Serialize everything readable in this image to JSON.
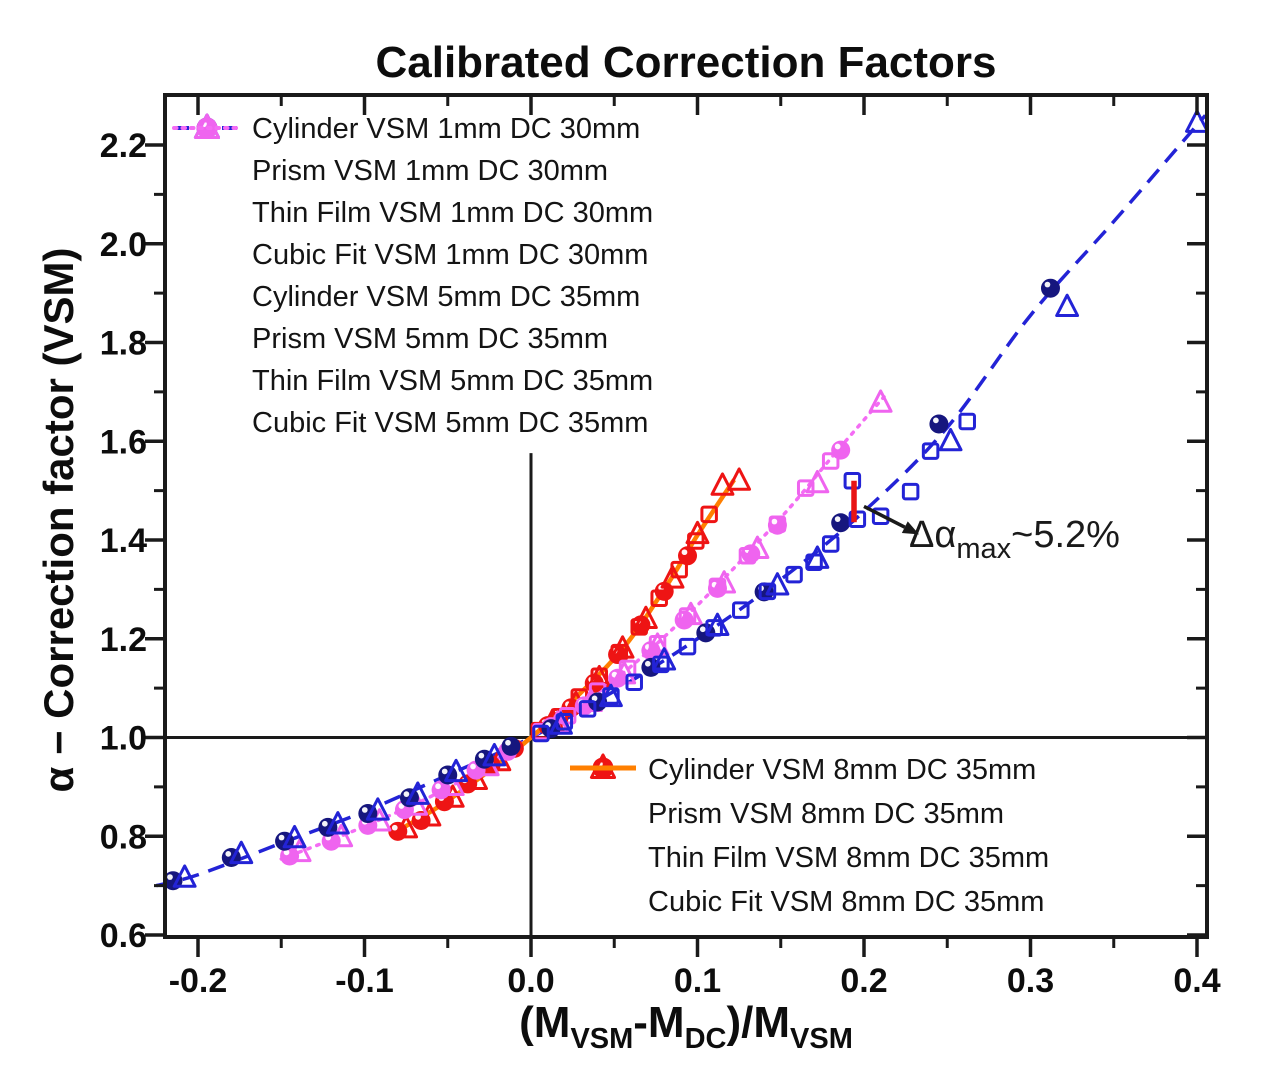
{
  "chart_data": {
    "type": "scatter",
    "title": "Calibrated Correction Factors",
    "ylabel": "α − Correction factor (VSM)",
    "xlabel": "(M_VSM-M_DC)/M_VSM",
    "xlabel_parts": [
      {
        "text": "(M"
      },
      {
        "sub": "VSM"
      },
      {
        "text": "-M"
      },
      {
        "sub": "DC"
      },
      {
        "text": ")/M"
      },
      {
        "sub": "VSM"
      }
    ],
    "x_range": [
      -0.2198,
      0.406
    ],
    "y_range": [
      0.596,
      2.301
    ],
    "x_ticks": [
      -0.2,
      -0.1,
      0.0,
      0.1,
      0.2,
      0.3,
      0.4
    ],
    "x_tick_labels": [
      "-0.2",
      "-0.1",
      "0.0",
      "0.1",
      "0.2",
      "0.3",
      "0.4"
    ],
    "x_minor_ticks": [
      -0.15,
      -0.05,
      0.05,
      0.15,
      0.25,
      0.35
    ],
    "y_ticks": [
      0.6,
      0.8,
      1.0,
      1.2,
      1.4,
      1.6,
      1.8,
      2.0,
      2.2
    ],
    "y_tick_labels": [
      "0.6",
      "0.8",
      "1.0",
      "1.2",
      "1.4",
      "1.6",
      "1.8",
      "2.0",
      "2.2"
    ],
    "y_minor_ticks": [
      0.7,
      0.9,
      1.1,
      1.3,
      1.5,
      1.7,
      1.9,
      2.1
    ],
    "grid": false,
    "reference_lines": {
      "horizontal_y": 1.0,
      "vertical_x": 0.0,
      "vertical_top": 1.576
    },
    "colors": {
      "blue": "#2323d6",
      "blue_fill": "#16167e",
      "magenta": "#ef64ef",
      "magenta_line": "#f46cf4",
      "red": "#ee1414",
      "orange": "#ff7f00",
      "black": "#1a1a1a",
      "annotation_segment": "#e81414"
    },
    "series": [
      {
        "name": "cylinder-vsm-1mm",
        "label": "Cylinder VSM 1mm DC 30mm",
        "marker": "sphere",
        "color": "#16167e",
        "points": [
          [
            -0.215,
            0.71
          ],
          [
            -0.18,
            0.757
          ],
          [
            -0.148,
            0.79
          ],
          [
            -0.122,
            0.818
          ],
          [
            -0.098,
            0.846
          ],
          [
            -0.073,
            0.878
          ],
          [
            -0.05,
            0.924
          ],
          [
            -0.028,
            0.956
          ],
          [
            -0.012,
            0.982
          ],
          [
            0.012,
            1.018
          ],
          [
            0.04,
            1.072
          ],
          [
            0.072,
            1.142
          ],
          [
            0.105,
            1.212
          ],
          [
            0.14,
            1.295
          ],
          [
            0.186,
            1.435
          ],
          [
            0.245,
            1.635
          ],
          [
            0.312,
            1.91
          ]
        ]
      },
      {
        "name": "prism-vsm-1mm",
        "label": "Prism VSM 1mm DC 30mm",
        "marker": "triangle",
        "color": "#2323d6",
        "points": [
          [
            -0.208,
            0.716
          ],
          [
            -0.174,
            0.764
          ],
          [
            -0.142,
            0.796
          ],
          [
            -0.116,
            0.824
          ],
          [
            -0.092,
            0.852
          ],
          [
            -0.068,
            0.884
          ],
          [
            -0.045,
            0.93
          ],
          [
            -0.022,
            0.962
          ],
          [
            0.018,
            1.026
          ],
          [
            0.048,
            1.082
          ],
          [
            0.08,
            1.156
          ],
          [
            0.112,
            1.226
          ],
          [
            0.148,
            1.308
          ],
          [
            0.172,
            1.362
          ],
          [
            0.252,
            1.6
          ],
          [
            0.322,
            1.872
          ],
          [
            0.4,
            2.245
          ]
        ]
      },
      {
        "name": "thinfilm-vsm-1mm",
        "label": "Thin Film VSM 1mm DC 30mm",
        "marker": "square",
        "color": "#2323d6",
        "points": [
          [
            0.006,
            1.008
          ],
          [
            0.02,
            1.032
          ],
          [
            0.034,
            1.058
          ],
          [
            0.048,
            1.084
          ],
          [
            0.062,
            1.112
          ],
          [
            0.078,
            1.148
          ],
          [
            0.094,
            1.184
          ],
          [
            0.11,
            1.222
          ],
          [
            0.126,
            1.258
          ],
          [
            0.142,
            1.296
          ],
          [
            0.158,
            1.33
          ],
          [
            0.17,
            1.355
          ],
          [
            0.18,
            1.392
          ],
          [
            0.193,
            1.52
          ],
          [
            0.196,
            1.442
          ],
          [
            0.21,
            1.448
          ],
          [
            0.228,
            1.498
          ],
          [
            0.24,
            1.58
          ],
          [
            0.262,
            1.64
          ]
        ]
      },
      {
        "name": "cubicfit-vsm-1mm",
        "label": "Cubic Fit VSM 1mm DC 30mm",
        "marker": "line-dashed",
        "color": "#2323d6",
        "fit_x": [
          -0.225,
          -0.2,
          -0.15,
          -0.1,
          -0.05,
          0.0,
          0.05,
          0.1,
          0.15,
          0.2,
          0.25,
          0.3,
          0.35,
          0.405
        ],
        "fit_y": [
          0.7,
          0.722,
          0.786,
          0.85,
          0.924,
          1.0,
          1.094,
          1.2,
          1.32,
          1.458,
          1.628,
          1.855,
          2.045,
          2.26
        ]
      },
      {
        "name": "cylinder-vsm-5mm",
        "label": "Cylinder VSM 5mm DC 35mm",
        "marker": "sphere",
        "color": "#ef64ef",
        "points": [
          [
            -0.145,
            0.76
          ],
          [
            -0.12,
            0.79
          ],
          [
            -0.098,
            0.822
          ],
          [
            -0.076,
            0.854
          ],
          [
            -0.054,
            0.894
          ],
          [
            -0.033,
            0.934
          ],
          [
            -0.014,
            0.972
          ],
          [
            0.012,
            1.022
          ],
          [
            0.032,
            1.064
          ],
          [
            0.052,
            1.12
          ],
          [
            0.072,
            1.176
          ],
          [
            0.092,
            1.238
          ],
          [
            0.112,
            1.302
          ],
          [
            0.132,
            1.372
          ],
          [
            0.148,
            1.43
          ],
          [
            0.186,
            1.582
          ]
        ]
      },
      {
        "name": "prism-vsm-5mm",
        "label": "Prism VSM 5mm DC 35mm",
        "marker": "triangle",
        "color": "#ef64ef",
        "points": [
          [
            -0.139,
            0.768
          ],
          [
            -0.114,
            0.798
          ],
          [
            -0.091,
            0.83
          ],
          [
            -0.069,
            0.862
          ],
          [
            -0.047,
            0.902
          ],
          [
            -0.026,
            0.942
          ],
          [
            0.016,
            1.028
          ],
          [
            0.036,
            1.072
          ],
          [
            0.056,
            1.128
          ],
          [
            0.076,
            1.186
          ],
          [
            0.096,
            1.248
          ],
          [
            0.116,
            1.312
          ],
          [
            0.136,
            1.382
          ],
          [
            0.172,
            1.515
          ],
          [
            0.21,
            1.678
          ]
        ]
      },
      {
        "name": "thinfilm-vsm-5mm",
        "label": "Thin Film VSM 5mm DC 35mm",
        "marker": "square",
        "color": "#ef64ef",
        "points": [
          [
            0.006,
            1.012
          ],
          [
            0.022,
            1.044
          ],
          [
            0.04,
            1.094
          ],
          [
            0.058,
            1.14
          ],
          [
            0.076,
            1.19
          ],
          [
            0.094,
            1.246
          ],
          [
            0.112,
            1.306
          ],
          [
            0.13,
            1.368
          ],
          [
            0.148,
            1.432
          ],
          [
            0.165,
            1.505
          ],
          [
            0.18,
            1.56
          ]
        ]
      },
      {
        "name": "cubicfit-vsm-5mm",
        "label": "Cubic Fit VSM 5mm DC 35mm",
        "marker": "line-dotted",
        "color": "#f46cf4",
        "fit_x": [
          -0.15,
          -0.1,
          -0.05,
          0.0,
          0.05,
          0.1,
          0.15,
          0.18,
          0.212
        ],
        "fit_y": [
          0.754,
          0.82,
          0.898,
          1.0,
          1.116,
          1.268,
          1.445,
          1.565,
          1.69
        ]
      },
      {
        "name": "cylinder-vsm-8mm",
        "label": "Cylinder VSM 8mm DC 35mm",
        "marker": "sphere",
        "color": "#ee1414",
        "points": [
          [
            -0.08,
            0.81
          ],
          [
            -0.066,
            0.832
          ],
          [
            -0.052,
            0.87
          ],
          [
            -0.038,
            0.906
          ],
          [
            -0.024,
            0.944
          ],
          [
            -0.01,
            0.978
          ],
          [
            0.01,
            1.024
          ],
          [
            0.024,
            1.06
          ],
          [
            0.038,
            1.11
          ],
          [
            0.052,
            1.168
          ],
          [
            0.066,
            1.228
          ],
          [
            0.08,
            1.296
          ],
          [
            0.094,
            1.368
          ]
        ]
      },
      {
        "name": "prism-vsm-8mm",
        "label": "Prism VSM 8mm DC 35mm",
        "marker": "triangle",
        "color": "#ee1414",
        "points": [
          [
            -0.075,
            0.816
          ],
          [
            -0.061,
            0.84
          ],
          [
            -0.047,
            0.878
          ],
          [
            -0.033,
            0.914
          ],
          [
            -0.019,
            0.952
          ],
          [
            0.013,
            1.032
          ],
          [
            0.027,
            1.068
          ],
          [
            0.041,
            1.12
          ],
          [
            0.055,
            1.18
          ],
          [
            0.069,
            1.24
          ],
          [
            0.085,
            1.322
          ],
          [
            0.1,
            1.412
          ],
          [
            0.115,
            1.51
          ],
          [
            0.125,
            1.52
          ]
        ]
      },
      {
        "name": "thinfilm-vsm-8mm",
        "label": "Thin Film VSM 8mm DC 35mm",
        "marker": "square",
        "color": "#ee1414",
        "points": [
          [
            0.005,
            1.014
          ],
          [
            0.017,
            1.042
          ],
          [
            0.029,
            1.082
          ],
          [
            0.041,
            1.124
          ],
          [
            0.053,
            1.172
          ],
          [
            0.065,
            1.224
          ],
          [
            0.077,
            1.282
          ],
          [
            0.089,
            1.34
          ],
          [
            0.099,
            1.398
          ],
          [
            0.107,
            1.452
          ]
        ]
      },
      {
        "name": "cubicfit-vsm-8mm",
        "label": "Cubic Fit VSM 8mm DC 35mm",
        "marker": "line-solid",
        "color": "#ff7f00",
        "fit_x": [
          -0.085,
          -0.05,
          0.0,
          0.05,
          0.08,
          0.1,
          0.122
        ],
        "fit_y": [
          0.802,
          0.872,
          1.0,
          1.16,
          1.3,
          1.41,
          1.522
        ]
      }
    ],
    "legend_top": {
      "items": [
        {
          "marker": "sphere",
          "color": "#16167e",
          "stroke": "#2323d6",
          "label": "Cylinder VSM 1mm DC 30mm"
        },
        {
          "marker": "triangle",
          "color": "#2323d6",
          "label": "Prism VSM 1mm DC 30mm"
        },
        {
          "marker": "square",
          "color": "#2323d6",
          "label": "Thin Film VSM 1mm DC 30mm"
        },
        {
          "marker": "line-dashed",
          "color": "#2323d6",
          "label": "Cubic Fit VSM 1mm DC 30mm"
        },
        {
          "marker": "sphere",
          "color": "#ef64ef",
          "stroke": "#ef64ef",
          "label": "Cylinder VSM 5mm DC 35mm"
        },
        {
          "marker": "triangle",
          "color": "#ef64ef",
          "label": "Prism VSM 5mm DC 35mm"
        },
        {
          "marker": "square",
          "color": "#ef64ef",
          "label": "Thin Film VSM 5mm DC 35mm"
        },
        {
          "marker": "line-dotted",
          "color": "#f46cf4",
          "label": "Cubic Fit VSM 5mm DC 35mm"
        }
      ]
    },
    "legend_bottom": {
      "items": [
        {
          "marker": "sphere",
          "color": "#ee1414",
          "stroke": "#ee1414",
          "label": "Cylinder VSM 8mm DC 35mm"
        },
        {
          "marker": "triangle",
          "color": "#ee1414",
          "label": "Prism VSM 8mm DC 35mm"
        },
        {
          "marker": "square",
          "color": "#ee1414",
          "label": "Thin Film VSM 8mm DC 35mm"
        },
        {
          "marker": "line-solid",
          "color": "#ff7f00",
          "label": "Cubic Fit VSM 8mm DC 35mm"
        }
      ]
    },
    "annotation": {
      "plain_text": "Δαmax~5.2%",
      "parts": [
        {
          "text": "Δα"
        },
        {
          "sub": "max"
        },
        {
          "text": "~5.2%"
        }
      ],
      "segment": {
        "x": 0.194,
        "y_bottom": 1.436,
        "y_top": 1.52
      },
      "arrow_from": [
        0.2,
        1.468
      ],
      "arrow_to": [
        0.2245,
        1.426
      ]
    }
  }
}
